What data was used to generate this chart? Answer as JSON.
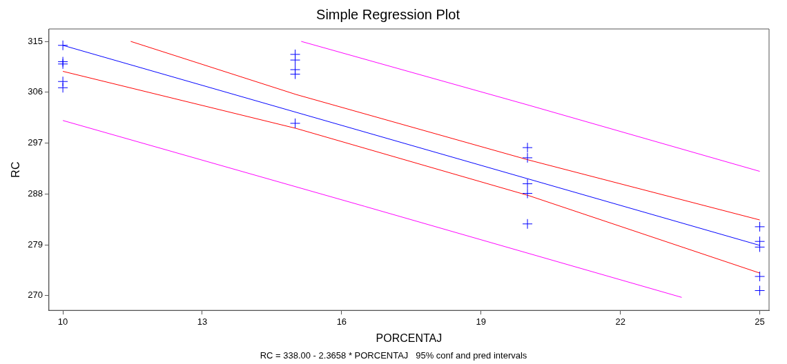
{
  "chart_data": {
    "type": "scatter",
    "title": "Simple Regression Plot",
    "xlabel": "PORCENTAJ",
    "ylabel": "RC",
    "annotations": [
      "RC = 338.00 - 2.3658 * PORCENTAJ   95% conf and pred intervals"
    ],
    "xlim": [
      9.7,
      25.2
    ],
    "xticks": [
      10,
      13,
      16,
      19,
      22,
      25
    ],
    "ylim": [
      267.4,
      317.2
    ],
    "yticks": [
      270,
      279,
      288,
      297,
      306,
      315
    ],
    "grid": false,
    "legend": false,
    "series": [
      {
        "marker": "cross",
        "color": "#0000ff",
        "x": [
          10,
          10,
          10,
          10,
          10,
          15,
          15,
          15,
          15,
          15,
          20,
          20,
          20,
          20,
          20,
          25,
          25,
          25,
          25,
          25
        ],
        "values": [
          314.3,
          311.4,
          311.0,
          307.9,
          306.8,
          312.7,
          311.7,
          310.0,
          309.2,
          300.5,
          296.2,
          294.4,
          289.8,
          288.1,
          282.7,
          282.2,
          279.6,
          278.6,
          273.4,
          270.9
        ]
      },
      {
        "type": "line",
        "marker": "none",
        "color": "#0000ff",
        "x": [
          10,
          25
        ],
        "values": [
          314.3,
          278.9
        ]
      },
      {
        "type": "line",
        "marker": "none",
        "color": "#ff0000",
        "x": [
          11.46,
          15.02,
          20.03,
          25
        ],
        "values": [
          315,
          305.6,
          294.0,
          283.4
        ]
      },
      {
        "type": "line",
        "marker": "none",
        "color": "#ff0000",
        "x": [
          10,
          15.02,
          20.03,
          25
        ],
        "values": [
          309.7,
          299.6,
          287.7,
          274.0
        ]
      },
      {
        "type": "line",
        "marker": "none",
        "color": "#ff00ff",
        "x": [
          15.13,
          20.03,
          25
        ],
        "values": [
          315,
          303.7,
          292.0
        ]
      },
      {
        "type": "line",
        "marker": "none",
        "color": "#ff00ff",
        "x": [
          10,
          16.5,
          23.32
        ],
        "values": [
          301.0,
          285.8,
          269.7
        ]
      }
    ]
  }
}
